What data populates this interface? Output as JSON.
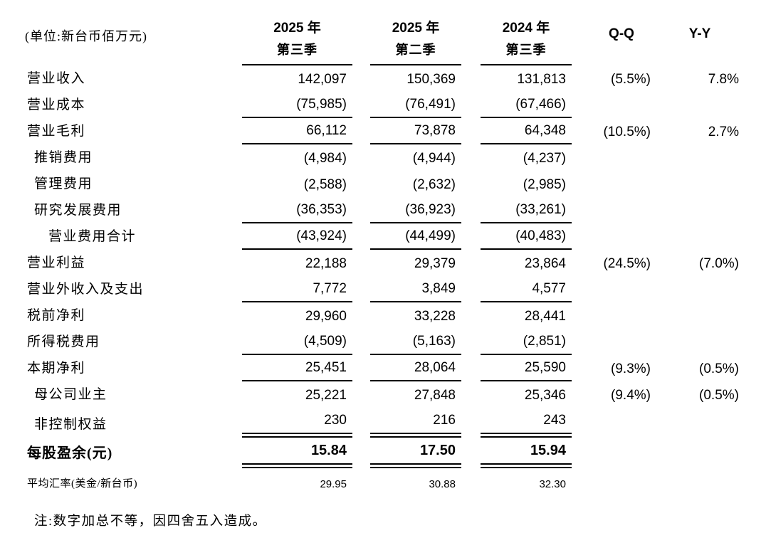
{
  "unit_label": "(单位:新台币佰万元)",
  "table": {
    "columns": [
      {
        "year": "2025 年",
        "quarter": "第三季"
      },
      {
        "year": "2025 年",
        "quarter": "第二季"
      },
      {
        "year": "2024 年",
        "quarter": "第三季"
      }
    ],
    "qq_header": "Q-Q",
    "yy_header": "Y-Y",
    "rows": [
      {
        "label": "营业收入",
        "values": [
          "142,097",
          "150,369",
          "131,813"
        ],
        "qq": "(5.5%)",
        "yy": "7.8%"
      },
      {
        "label": "营业成本",
        "values": [
          "(75,985)",
          "(76,491)",
          "(67,466)"
        ]
      },
      {
        "label": "营业毛利",
        "values": [
          "66,112",
          "73,878",
          "64,348"
        ],
        "qq": "(10.5%)",
        "yy": "2.7%"
      },
      {
        "label": "推销费用",
        "values": [
          "(4,984)",
          "(4,944)",
          "(4,237)"
        ]
      },
      {
        "label": "管理费用",
        "values": [
          "(2,588)",
          "(2,632)",
          "(2,985)"
        ]
      },
      {
        "label": "研究发展费用",
        "values": [
          "(36,353)",
          "(36,923)",
          "(33,261)"
        ]
      },
      {
        "label": "营业费用合计",
        "values": [
          "(43,924)",
          "(44,499)",
          "(40,483)"
        ]
      },
      {
        "label": "营业利益",
        "values": [
          "22,188",
          "29,379",
          "23,864"
        ],
        "qq": "(24.5%)",
        "yy": "(7.0%)"
      },
      {
        "label": "营业外收入及支出",
        "values": [
          "7,772",
          "3,849",
          "4,577"
        ]
      },
      {
        "label": "税前净利",
        "values": [
          "29,960",
          "33,228",
          "28,441"
        ]
      },
      {
        "label": "所得税费用",
        "values": [
          "(4,509)",
          "(5,163)",
          "(2,851)"
        ]
      },
      {
        "label": "本期净利",
        "values": [
          "25,451",
          "28,064",
          "25,590"
        ],
        "qq": "(9.3%)",
        "yy": "(0.5%)"
      },
      {
        "label": "母公司业主",
        "values": [
          "25,221",
          "27,848",
          "25,346"
        ],
        "qq": "(9.4%)",
        "yy": "(0.5%)"
      },
      {
        "label": "非控制权益",
        "values": [
          "230",
          "216",
          "243"
        ]
      },
      {
        "label": "每股盈余(元)",
        "values": [
          "15.84",
          "17.50",
          "15.94"
        ]
      },
      {
        "label": "平均汇率(美金/新台币)",
        "values": [
          "29.95",
          "30.88",
          "32.30"
        ]
      }
    ],
    "note": "注:数字加总不等，因四舍五入造成。"
  }
}
